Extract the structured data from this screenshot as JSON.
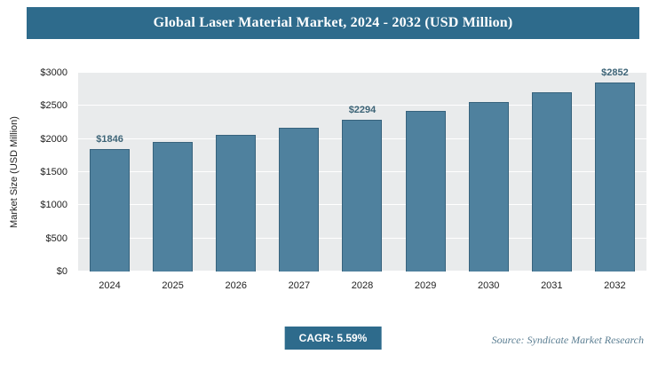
{
  "header": {
    "title": "Global Laser Material Market, 2024 - 2032 (USD Million)"
  },
  "chart_data": {
    "type": "bar",
    "title": "Global Laser Material Market, 2024 - 2032 (USD Million)",
    "categories": [
      "2024",
      "2025",
      "2026",
      "2027",
      "2028",
      "2029",
      "2030",
      "2031",
      "2032"
    ],
    "values": [
      1846,
      1949,
      2058,
      2173,
      2294,
      2422,
      2557,
      2700,
      2852
    ],
    "labeled_points": {
      "2024": "$1846",
      "2028": "$2294",
      "2032": "$2852"
    },
    "xlabel": "",
    "ylabel": "Market Size (USD Million)",
    "ylim": [
      0,
      3000
    ],
    "yticks": [
      0,
      500,
      1000,
      1500,
      2000,
      2500,
      3000
    ],
    "ytick_labels": [
      "$0",
      "$500",
      "$1000",
      "$1500",
      "$2000",
      "$2500",
      "$3000"
    ],
    "grid": true,
    "legend": false,
    "bar_color": "#4f819e",
    "bar_border_color": "#37637d",
    "plot_bg": "#e9ebec"
  },
  "footer": {
    "cagr_label": "CAGR: 5.59%",
    "source": "Source: Syndicate Market Research"
  },
  "colors": {
    "accent": "#2e6b8c",
    "value_label_color": "#3d6477"
  }
}
